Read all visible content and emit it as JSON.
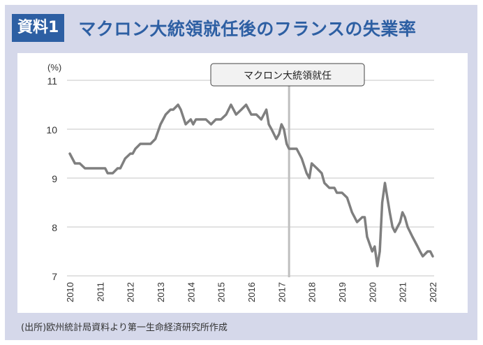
{
  "header": {
    "badge": "資料1",
    "title": "マクロン大統領就任後のフランスの失業率"
  },
  "annotation": {
    "label": "マクロン大統領就任",
    "year": 2017.25
  },
  "source": "(出所)欧州統計局資料より第一生命経済研究所作成",
  "colors": {
    "accent": "#2d5fa3",
    "panel_bg": "#d5d8ea",
    "line": "#7f7f7f",
    "marker_line": "#bfbfbf",
    "grid": "#d9d9d9"
  },
  "chart_data": {
    "type": "line",
    "title": "マクロン大統領就任後のフランスの失業率",
    "xlabel": "",
    "ylabel": "(%)",
    "ylim": [
      7,
      11
    ],
    "yticks": [
      7,
      8,
      9,
      10,
      11
    ],
    "xticks": [
      "2010",
      "2011",
      "2012",
      "2013",
      "2014",
      "2015",
      "2016",
      "2017",
      "2018",
      "2019",
      "2020",
      "2021",
      "2022"
    ],
    "grid": true,
    "legend": "none",
    "note": "Values estimated from pixel positions of the plotted line (y-axis calibrated from gridlines at 7-11%, x-axis from year ticks). Expect roughly ±0.1% error per point; not source data.",
    "series": [
      {
        "name": "France unemployment rate (%), approximate",
        "x": [
          2010.0,
          2010.17,
          2010.33,
          2010.5,
          2010.67,
          2010.83,
          2011.0,
          2011.17,
          2011.25,
          2011.42,
          2011.58,
          2011.67,
          2011.83,
          2012.0,
          2012.08,
          2012.17,
          2012.33,
          2012.5,
          2012.67,
          2012.83,
          2013.0,
          2013.17,
          2013.33,
          2013.42,
          2013.58,
          2013.67,
          2013.83,
          2014.0,
          2014.08,
          2014.17,
          2014.33,
          2014.5,
          2014.67,
          2014.83,
          2015.0,
          2015.17,
          2015.33,
          2015.5,
          2015.67,
          2015.83,
          2016.0,
          2016.08,
          2016.17,
          2016.33,
          2016.5,
          2016.58,
          2016.67,
          2016.83,
          2016.92,
          2017.0,
          2017.08,
          2017.17,
          2017.25,
          2017.33,
          2017.5,
          2017.67,
          2017.83,
          2017.92,
          2018.0,
          2018.17,
          2018.33,
          2018.42,
          2018.58,
          2018.75,
          2018.83,
          2019.0,
          2019.17,
          2019.33,
          2019.5,
          2019.67,
          2019.75,
          2019.83,
          2020.0,
          2020.08,
          2020.17,
          2020.25,
          2020.33,
          2020.42,
          2020.58,
          2020.67,
          2020.75,
          2020.92,
          2021.0,
          2021.08,
          2021.17,
          2021.33,
          2021.5,
          2021.58,
          2021.67,
          2021.83,
          2021.92,
          2022.0
        ],
        "values": [
          9.5,
          9.3,
          9.3,
          9.2,
          9.2,
          9.2,
          9.2,
          9.2,
          9.1,
          9.1,
          9.2,
          9.2,
          9.4,
          9.5,
          9.5,
          9.6,
          9.7,
          9.7,
          9.7,
          9.8,
          10.1,
          10.3,
          10.4,
          10.4,
          10.5,
          10.4,
          10.1,
          10.2,
          10.1,
          10.2,
          10.2,
          10.2,
          10.1,
          10.2,
          10.2,
          10.3,
          10.5,
          10.3,
          10.4,
          10.5,
          10.3,
          10.3,
          10.3,
          10.2,
          10.4,
          10.1,
          10.0,
          9.8,
          9.9,
          10.1,
          10.0,
          9.7,
          9.6,
          9.6,
          9.6,
          9.4,
          9.1,
          9.0,
          9.3,
          9.2,
          9.1,
          8.9,
          8.8,
          8.8,
          8.7,
          8.7,
          8.6,
          8.3,
          8.1,
          8.2,
          8.2,
          7.8,
          7.5,
          7.6,
          7.2,
          7.5,
          8.5,
          8.9,
          8.3,
          8.0,
          7.9,
          8.1,
          8.3,
          8.2,
          8.0,
          7.8,
          7.6,
          7.5,
          7.4,
          7.5,
          7.5,
          7.4
        ]
      }
    ]
  }
}
